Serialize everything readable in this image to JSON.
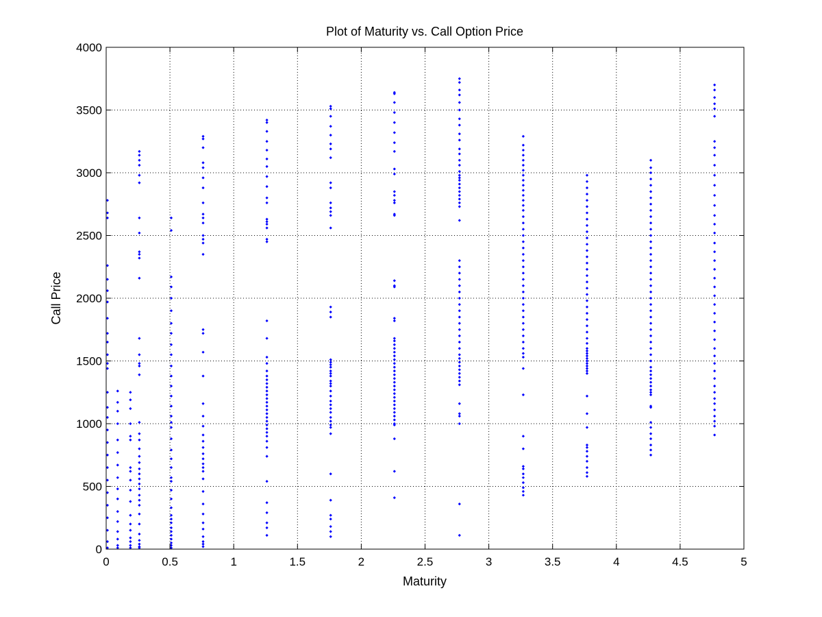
{
  "chart_data": {
    "type": "scatter",
    "title": "Plot of Maturity vs. Call Option Price",
    "xlabel": "Maturity",
    "ylabel": "Call Price",
    "xlim": [
      0,
      5
    ],
    "ylim": [
      0,
      4000
    ],
    "xticks": [
      "0",
      "0.5",
      "1",
      "1.5",
      "2",
      "2.5",
      "3",
      "3.5",
      "4",
      "4.5",
      "5"
    ],
    "yticks": [
      "0",
      "500",
      "1000",
      "1500",
      "2000",
      "2500",
      "3000",
      "3500",
      "4000"
    ],
    "grid": true,
    "marker_color": "#0000ff",
    "series": [
      {
        "columns": [
          {
            "x": 0.01,
            "y": [
              2780,
              2680,
              2640,
              2260,
              2150,
              2060,
              1970,
              1840,
              1720,
              1650,
              1550,
              1480,
              1440,
              1250,
              1130,
              1050,
              950,
              850,
              750,
              650,
              550,
              450,
              350,
              250,
              150,
              60,
              10
            ]
          },
          {
            "x": 0.09,
            "y": [
              1260,
              1170,
              1100,
              1000,
              870,
              770,
              670,
              570,
              480,
              400,
              300,
              220,
              140,
              80,
              30,
              10
            ]
          },
          {
            "x": 0.19,
            "y": [
              1250,
              1190,
              1120,
              1000,
              900,
              870,
              650,
              620,
              550,
              470,
              380,
              270,
              200,
              150,
              90,
              60,
              30,
              10
            ]
          },
          {
            "x": 0.26,
            "y": [
              3170,
              3140,
              3100,
              3060,
              2980,
              2920,
              2640,
              2520,
              2370,
              2350,
              2320,
              2160,
              1680,
              1550,
              1480,
              1460,
              1390,
              1010,
              920,
              870,
              800,
              740,
              690,
              640,
              600,
              560,
              520,
              480,
              430,
              390,
              350,
              280,
              200,
              120,
              70,
              40,
              20,
              10
            ]
          },
          {
            "x": 0.51,
            "y": [
              2640,
              2540,
              2170,
              2090,
              2000,
              1900,
              1800,
              1720,
              1630,
              1550,
              1460,
              1380,
              1300,
              1220,
              1140,
              1060,
              1010,
              970,
              880,
              790,
              720,
              650,
              570,
              540,
              470,
              400,
              330,
              270,
              240,
              210,
              170,
              140,
              110,
              80,
              50,
              30,
              10
            ]
          },
          {
            "x": 0.76,
            "y": [
              3290,
              3270,
              3200,
              3080,
              3040,
              2960,
              2880,
              2760,
              2670,
              2640,
              2600,
              2500,
              2470,
              2440,
              2350,
              1750,
              1720,
              1570,
              1380,
              1160,
              1060,
              980,
              910,
              860,
              810,
              760,
              720,
              680,
              650,
              620,
              560,
              460,
              360,
              280,
              210,
              160,
              100,
              60,
              40,
              20
            ]
          },
          {
            "x": 1.26,
            "y": [
              3420,
              3400,
              3330,
              3250,
              3180,
              3110,
              3050,
              2970,
              2890,
              2800,
              2760,
              2630,
              2610,
              2590,
              2560,
              2470,
              2450,
              1820,
              1680,
              1530,
              1480,
              1420,
              1380,
              1350,
              1320,
              1290,
              1260,
              1230,
              1200,
              1170,
              1140,
              1110,
              1080,
              1050,
              1020,
              990,
              960,
              930,
              900,
              860,
              810,
              740,
              540,
              370,
              290,
              210,
              170,
              110
            ]
          },
          {
            "x": 1.76,
            "y": [
              3530,
              3510,
              3450,
              3370,
              3300,
              3230,
              3190,
              3120,
              2920,
              2880,
              2760,
              2720,
              2690,
              2660,
              2560,
              1930,
              1890,
              1850,
              1510,
              1490,
              1470,
              1450,
              1420,
              1400,
              1380,
              1340,
              1320,
              1300,
              1260,
              1220,
              1180,
              1150,
              1120,
              1090,
              1050,
              1020,
              990,
              970,
              920,
              600,
              390,
              270,
              240,
              180,
              140,
              100
            ]
          },
          {
            "x": 2.26,
            "y": [
              3640,
              3630,
              3560,
              3480,
              3400,
              3320,
              3240,
              3170,
              3030,
              2990,
              2850,
              2820,
              2780,
              2760,
              2670,
              2660,
              2140,
              2100,
              2090,
              1840,
              1820,
              1680,
              1660,
              1630,
              1600,
              1570,
              1540,
              1510,
              1480,
              1450,
              1420,
              1390,
              1360,
              1330,
              1300,
              1270,
              1240,
              1210,
              1180,
              1150,
              1120,
              1090,
              1060,
              1030,
              1000,
              990,
              880,
              620,
              410
            ]
          },
          {
            "x": 2.77,
            "y": [
              3750,
              3720,
              3660,
              3620,
              3560,
              3500,
              3430,
              3380,
              3310,
              3260,
              3190,
              3150,
              3100,
              3060,
              3010,
              2980,
              2960,
              2940,
              2910,
              2880,
              2850,
              2820,
              2790,
              2760,
              2730,
              2620,
              2300,
              2250,
              2200,
              2150,
              2100,
              2050,
              2000,
              1950,
              1900,
              1850,
              1800,
              1750,
              1700,
              1650,
              1600,
              1550,
              1520,
              1490,
              1460,
              1430,
              1400,
              1370,
              1340,
              1310,
              1160,
              1080,
              1060,
              1000,
              360,
              110
            ]
          },
          {
            "x": 3.27,
            "y": [
              3290,
              3220,
              3180,
              3140,
              3100,
              3060,
              3020,
              2980,
              2940,
              2900,
              2860,
              2820,
              2780,
              2740,
              2700,
              2650,
              2600,
              2550,
              2500,
              2450,
              2400,
              2350,
              2300,
              2250,
              2200,
              2150,
              2100,
              2050,
              2000,
              1950,
              1900,
              1850,
              1800,
              1750,
              1700,
              1650,
              1600,
              1560,
              1530,
              1440,
              1230,
              900,
              800,
              660,
              640,
              600,
              570,
              530,
              490,
              460,
              430
            ]
          },
          {
            "x": 3.77,
            "y": [
              2980,
              2930,
              2880,
              2830,
              2780,
              2730,
              2680,
              2630,
              2580,
              2530,
              2480,
              2430,
              2380,
              2330,
              2280,
              2230,
              2180,
              2130,
              2080,
              2030,
              1980,
              1930,
              1880,
              1830,
              1780,
              1730,
              1680,
              1640,
              1600,
              1580,
              1560,
              1540,
              1520,
              1500,
              1480,
              1460,
              1440,
              1420,
              1400,
              1220,
              1080,
              970,
              830,
              810,
              780,
              740,
              700,
              650,
              610,
              580
            ]
          },
          {
            "x": 4.27,
            "y": [
              3100,
              3040,
              3000,
              2950,
              2900,
              2850,
              2800,
              2750,
              2700,
              2650,
              2600,
              2550,
              2500,
              2450,
              2400,
              2350,
              2300,
              2250,
              2200,
              2150,
              2100,
              2050,
              2000,
              1950,
              1900,
              1850,
              1800,
              1750,
              1700,
              1650,
              1600,
              1550,
              1500,
              1450,
              1420,
              1390,
              1360,
              1330,
              1300,
              1270,
              1250,
              1230,
              1140,
              1130,
              1010,
              970,
              920,
              880,
              830,
              790,
              750
            ]
          },
          {
            "x": 4.77,
            "y": [
              3700,
              3660,
              3600,
              3550,
              3510,
              3450,
              3250,
              3200,
              3140,
              3060,
              2980,
              2900,
              2820,
              2740,
              2660,
              2590,
              2520,
              2440,
              2370,
              2300,
              2230,
              2160,
              2090,
              2020,
              1950,
              1880,
              1810,
              1740,
              1670,
              1600,
              1540,
              1480,
              1420,
              1360,
              1300,
              1250,
              1200,
              1160,
              1110,
              1060,
              1020,
              980,
              910
            ]
          }
        ]
      }
    ]
  }
}
